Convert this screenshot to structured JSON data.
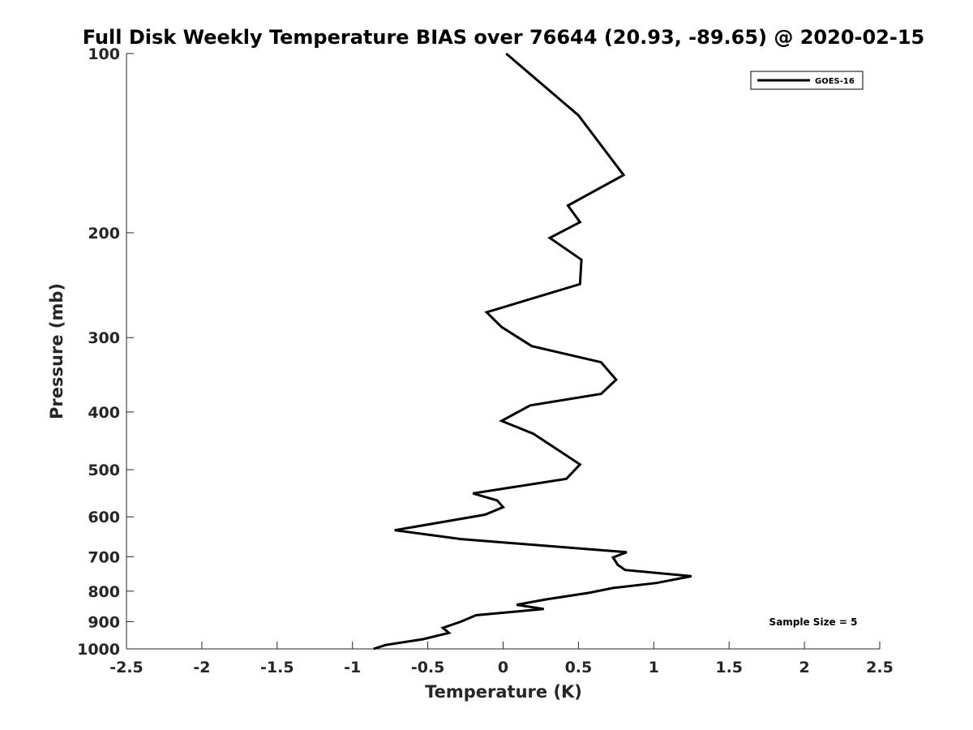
{
  "chart_data": {
    "type": "line",
    "title": "Full Disk Weekly Temperature BIAS over 76644 (20.93, -89.65) @ 2020-02-15",
    "xlabel": "Temperature (K)",
    "ylabel": "Pressure (mb)",
    "xlim": [
      -2.5,
      2.5
    ],
    "ylim": [
      1000,
      100
    ],
    "y_scale": "log",
    "y_reversed": true,
    "x_ticks": [
      "-2.5",
      "-2",
      "-1.5",
      "-1",
      "-0.5",
      "0",
      "0.5",
      "1",
      "1.5",
      "2",
      "2.5"
    ],
    "y_ticks": [
      "100",
      "200",
      "300",
      "400",
      "500",
      "600",
      "700",
      "800",
      "900",
      "1000"
    ],
    "grid": false,
    "legend_position": "top-right",
    "series": [
      {
        "name": "GOES-16",
        "color": "#000000",
        "x": [
          0.02,
          0.5,
          0.8,
          0.43,
          0.51,
          0.31,
          0.52,
          0.51,
          -0.11,
          -0.01,
          0.19,
          0.65,
          0.75,
          0.65,
          0.18,
          -0.01,
          0.2,
          0.38,
          0.51,
          0.42,
          -0.2,
          -0.04,
          0.0,
          -0.12,
          -0.4,
          -0.72,
          -0.28,
          0.82,
          0.73,
          0.76,
          0.81,
          1.25,
          1.02,
          0.73,
          0.57,
          0.28,
          0.09,
          0.27,
          -0.18,
          -0.28,
          -0.4,
          -0.36,
          -0.53,
          -0.78,
          -0.86
        ],
        "y": [
          100,
          127,
          160,
          180,
          192,
          204,
          222,
          244,
          272,
          288,
          310,
          330,
          353,
          373,
          390,
          414,
          435,
          466,
          490,
          518,
          548,
          563,
          578,
          595,
          612,
          632,
          654,
          688,
          702,
          722,
          737,
          755,
          775,
          790,
          805,
          826,
          843,
          857,
          878,
          900,
          922,
          940,
          963,
          985,
          1000
        ]
      }
    ],
    "annotations": [
      "Sample Size = 5"
    ]
  }
}
